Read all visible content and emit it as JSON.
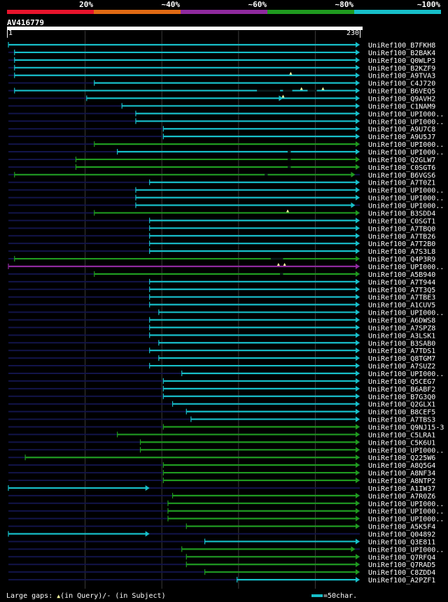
{
  "legend": {
    "labels": [
      "20%",
      "~40%",
      "~60%",
      "~80%",
      "~100%"
    ],
    "colors": [
      "#e8142c",
      "#e06a14",
      "#8f2a9e",
      "#1f9a1f",
      "#17bfc9"
    ]
  },
  "query": {
    "name": "AV416779",
    "start": "1",
    "end": "230",
    "length": 230
  },
  "hits": [
    {
      "name": "UniRef100_B7FKH8",
      "start": 1,
      "end": 230,
      "color": "cyan",
      "arrow_left": true
    },
    {
      "name": "UniRef100_B2BAK4",
      "start": 5,
      "end": 230,
      "color": "cyan"
    },
    {
      "name": "UniRef100_Q0WLP3",
      "start": 5,
      "end": 230,
      "color": "cyan"
    },
    {
      "name": "UniRef100_B2KZF9",
      "start": 5,
      "end": 230,
      "color": "cyan"
    },
    {
      "name": "UniRef100_A9TVA3",
      "start": 5,
      "end": 230,
      "color": "cyan",
      "gaps": [
        185
      ]
    },
    {
      "name": "UniRef100_C4J720",
      "start": 57,
      "end": 230,
      "color": "cyan"
    },
    {
      "name": "UniRef100_B6VEQ5",
      "start": 5,
      "end": 230,
      "color": "cyan",
      "gaps": [
        192,
        206
      ],
      "dark": [
        [
          163,
          178
        ],
        [
          180,
          186
        ],
        [
          196,
          202
        ]
      ]
    },
    {
      "name": "UniRef100_Q9AVH2",
      "start": 52,
      "end": 230,
      "color": "cyan",
      "gaps": [
        180
      ],
      "arrow_mid": 180
    },
    {
      "name": "UniRef100_C1NAM9",
      "start": 75,
      "end": 230,
      "color": "cyan"
    },
    {
      "name": "UniRef100_UPI000..",
      "start": 84,
      "end": 230,
      "color": "cyan"
    },
    {
      "name": "UniRef100_UPI000..",
      "start": 84,
      "end": 230,
      "color": "cyan"
    },
    {
      "name": "UniRef100_A9U7C8",
      "start": 102,
      "end": 230,
      "color": "cyan"
    },
    {
      "name": "UniRef100_A9U5J7",
      "start": 102,
      "end": 230,
      "color": "cyan"
    },
    {
      "name": "UniRef100_UPI000..",
      "start": 57,
      "end": 230,
      "color": "green"
    },
    {
      "name": "UniRef100_UPI000..",
      "start": 72,
      "end": 230,
      "color": "cyan",
      "dark": [
        [
          183,
          185
        ]
      ]
    },
    {
      "name": "UniRef100_Q2GLW7",
      "start": 45,
      "end": 230,
      "color": "green",
      "dark": [
        [
          183,
          185
        ]
      ]
    },
    {
      "name": "UniRef100_C0SGT6",
      "start": 45,
      "end": 230,
      "color": "green",
      "dark": [
        [
          183,
          185
        ]
      ]
    },
    {
      "name": "UniRef100_B6VGS6",
      "start": 5,
      "end": 227,
      "color": "green",
      "dark": [
        [
          168,
          170
        ]
      ]
    },
    {
      "name": "UniRef100_A7T0Z1",
      "start": 93,
      "end": 230,
      "color": "cyan"
    },
    {
      "name": "UniRef100_UPI000..",
      "start": 84,
      "end": 230,
      "color": "cyan"
    },
    {
      "name": "UniRef100_UPI000..",
      "start": 84,
      "end": 230,
      "color": "cyan"
    },
    {
      "name": "UniRef100_UPI000..",
      "start": 84,
      "end": 227,
      "color": "cyan"
    },
    {
      "name": "UniRef100_B3SDD4",
      "start": 57,
      "end": 230,
      "color": "green",
      "gaps": [
        183
      ]
    },
    {
      "name": "UniRef100_C0SGT1",
      "start": 93,
      "end": 230,
      "color": "cyan"
    },
    {
      "name": "UniRef100_A7TBQ0",
      "start": 93,
      "end": 230,
      "color": "cyan"
    },
    {
      "name": "UniRef100_A7TB26",
      "start": 93,
      "end": 230,
      "color": "cyan"
    },
    {
      "name": "UniRef100_A7T2B0",
      "start": 93,
      "end": 230,
      "color": "cyan"
    },
    {
      "name": "UniRef100_A7S3L8",
      "start": 93,
      "end": 230,
      "color": "cyan"
    },
    {
      "name": "UniRef100_Q4P3R9",
      "start": 5,
      "end": 230,
      "color": "green",
      "dark": [
        [
          172,
          180
        ]
      ]
    },
    {
      "name": "UniRef100_UPI000..",
      "start": 1,
      "end": 230,
      "color": "purple",
      "gaps": [
        177,
        181
      ],
      "arrow_left": true
    },
    {
      "name": "UniRef100_A5B940",
      "start": 57,
      "end": 230,
      "color": "green",
      "dark": [
        [
          178,
          180
        ]
      ]
    },
    {
      "name": "UniRef100_A7T944",
      "start": 93,
      "end": 230,
      "color": "cyan"
    },
    {
      "name": "UniRef100_A7T3Q5",
      "start": 93,
      "end": 230,
      "color": "cyan"
    },
    {
      "name": "UniRef100_A7TBE3",
      "start": 93,
      "end": 230,
      "color": "cyan"
    },
    {
      "name": "UniRef100_A1CUV5",
      "start": 93,
      "end": 230,
      "color": "cyan"
    },
    {
      "name": "UniRef100_UPI000..",
      "start": 99,
      "end": 230,
      "color": "cyan"
    },
    {
      "name": "UniRef100_A6DWS8",
      "start": 93,
      "end": 230,
      "color": "cyan"
    },
    {
      "name": "UniRef100_A7SPZ8",
      "start": 93,
      "end": 230,
      "color": "cyan"
    },
    {
      "name": "UniRef100_A3LSK1",
      "start": 93,
      "end": 230,
      "color": "cyan"
    },
    {
      "name": "UniRef100_B3SAB0",
      "start": 99,
      "end": 230,
      "color": "cyan"
    },
    {
      "name": "UniRef100_A7TDS1",
      "start": 93,
      "end": 230,
      "color": "cyan"
    },
    {
      "name": "UniRef100_Q8TGM7",
      "start": 99,
      "end": 230,
      "color": "cyan"
    },
    {
      "name": "UniRef100_A7SUZ2",
      "start": 93,
      "end": 230,
      "color": "cyan"
    },
    {
      "name": "UniRef100_UPI000..",
      "start": 114,
      "end": 230,
      "color": "cyan"
    },
    {
      "name": "UniRef100_Q5CEG7",
      "start": 102,
      "end": 230,
      "color": "cyan"
    },
    {
      "name": "UniRef100_B6ABF2",
      "start": 102,
      "end": 230,
      "color": "cyan"
    },
    {
      "name": "UniRef100_B7G3Q0",
      "start": 102,
      "end": 230,
      "color": "cyan"
    },
    {
      "name": "UniRef100_Q2GLX1",
      "start": 108,
      "end": 230,
      "color": "cyan"
    },
    {
      "name": "UniRef100_B8CEF5",
      "start": 117,
      "end": 230,
      "color": "cyan"
    },
    {
      "name": "UniRef100_A7TBS3",
      "start": 120,
      "end": 230,
      "color": "cyan"
    },
    {
      "name": "UniRef100_Q9NJ15-3",
      "start": 102,
      "end": 230,
      "color": "green"
    },
    {
      "name": "UniRef100_C5LRA1",
      "start": 72,
      "end": 230,
      "color": "green"
    },
    {
      "name": "UniRef100_C5K6U1",
      "start": 87,
      "end": 230,
      "color": "green"
    },
    {
      "name": "UniRef100_UPI000..",
      "start": 87,
      "end": 230,
      "color": "green"
    },
    {
      "name": "UniRef100_Q225W6",
      "start": 12,
      "end": 230,
      "color": "green"
    },
    {
      "name": "UniRef100_A8Q5G4",
      "start": 102,
      "end": 230,
      "color": "green"
    },
    {
      "name": "UniRef100_A8NF34",
      "start": 102,
      "end": 230,
      "color": "green"
    },
    {
      "name": "UniRef100_A8NTP2",
      "start": 102,
      "end": 230,
      "color": "green"
    },
    {
      "name": "UniRef100_A1IW37",
      "start": 1,
      "end": 93,
      "color": "cyan",
      "arrow_left": true
    },
    {
      "name": "UniRef100_A7R0Z6",
      "start": 108,
      "end": 230,
      "color": "green"
    },
    {
      "name": "UniRef100_UPI000..",
      "start": 105,
      "end": 230,
      "color": "green"
    },
    {
      "name": "UniRef100_UPI000..",
      "start": 105,
      "end": 230,
      "color": "green"
    },
    {
      "name": "UniRef100_UPI000..",
      "start": 105,
      "end": 230,
      "color": "green"
    },
    {
      "name": "UniRef100_A5K5F4",
      "start": 117,
      "end": 230,
      "color": "green"
    },
    {
      "name": "UniRef100_Q04892",
      "start": 1,
      "end": 93,
      "color": "cyan",
      "arrow_left": true
    },
    {
      "name": "UniRef100_Q3E811",
      "start": 129,
      "end": 230,
      "color": "cyan"
    },
    {
      "name": "UniRef100_UPI000..",
      "start": 114,
      "end": 227,
      "color": "green"
    },
    {
      "name": "UniRef100_Q7RFQ4",
      "start": 117,
      "end": 230,
      "color": "green"
    },
    {
      "name": "UniRef100_Q7RAD5",
      "start": 117,
      "end": 230,
      "color": "green"
    },
    {
      "name": "UniRef100_C8ZDD4",
      "start": 129,
      "end": 230,
      "color": "green"
    },
    {
      "name": "UniRef100_A2PZF1",
      "start": 150,
      "end": 230,
      "color": "cyan"
    }
  ],
  "footer": {
    "gaps_prefix": "Large gaps: ",
    "gaps_query": "(in Query)/",
    "gaps_subject": "- (in Subject)",
    "gap_marker": "▲",
    "scale_label": "=50char."
  },
  "palette": {
    "cyan": "#17bfc9",
    "green": "#1f9a1f",
    "purple": "#8f2a9e",
    "track": "#12144a",
    "grid": "#3a3a3a",
    "gap": "#ffffa0",
    "dark": "#0a1a1a"
  }
}
